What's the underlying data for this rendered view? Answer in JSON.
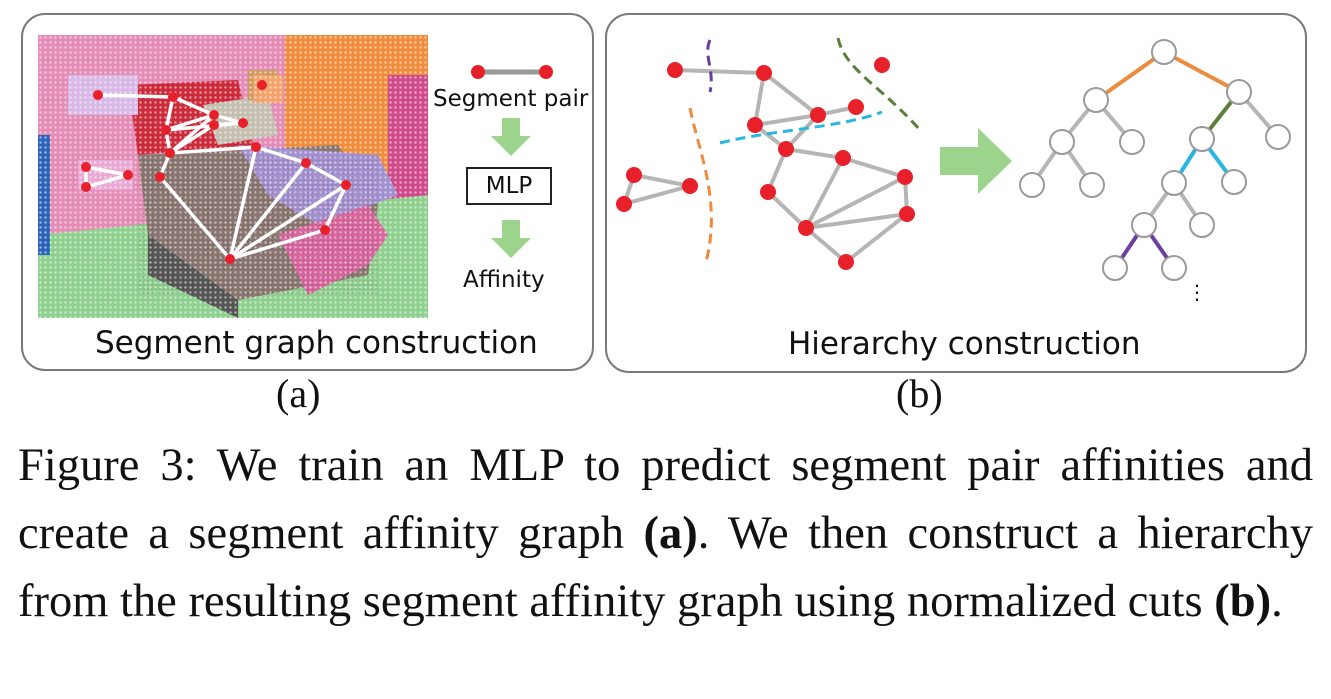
{
  "panel_a": {
    "title": "Segment graph construction",
    "segment_pair_label": "Segment pair",
    "mlp_label": "MLP",
    "affinity_label": "Affinity",
    "sublabel": "(a)"
  },
  "panel_b": {
    "title": "Hierarchy construction",
    "ellipsis": "⋮",
    "sublabel": "(b)"
  },
  "caption": {
    "lead": "Figure 3: We train an MLP to predict segment pair affinities and create a segment affinity graph ",
    "ref_a": "(a)",
    "middle": ". We then construct a hierarchy from the resulting segment affinity graph using normalized cuts ",
    "ref_b": "(b)",
    "end": "."
  },
  "colors": {
    "node_red": "#e8202a",
    "edge_gray": "#b5b5b5",
    "arrow_green": "#9dd48d",
    "cut_orange": "#ee8a3c",
    "cut_purple": "#6a3f9e",
    "cut_green": "#5b7f3b",
    "cut_cyan": "#29b6e3"
  }
}
